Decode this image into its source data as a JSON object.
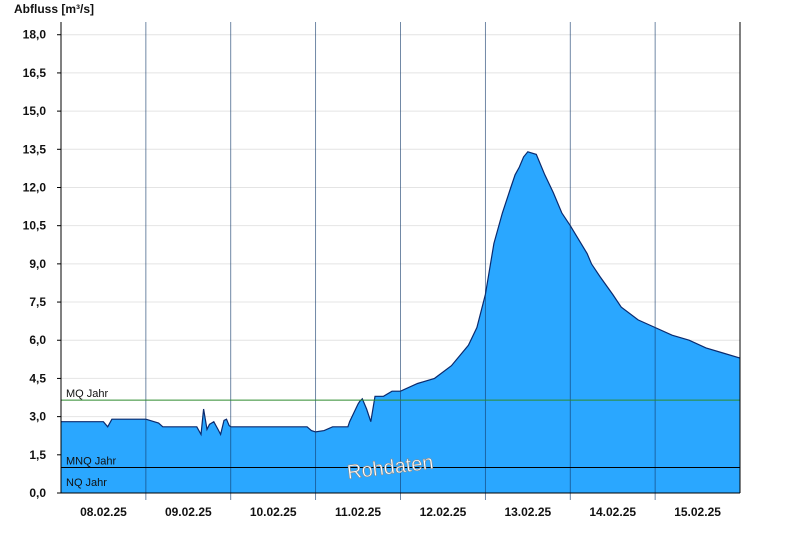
{
  "chart_data": {
    "type": "area",
    "title": "",
    "ylabel": "Abfluss [m³/s]",
    "xlabel": "",
    "ylim": [
      0,
      18.5
    ],
    "yticks": [
      "0,0",
      "1,5",
      "3,0",
      "4,5",
      "6,0",
      "7,5",
      "9,0",
      "10,5",
      "12,0",
      "13,5",
      "15,0",
      "16,5",
      "18,0"
    ],
    "ytick_values": [
      0,
      1.5,
      3.0,
      4.5,
      6.0,
      7.5,
      9.0,
      10.5,
      12.0,
      13.5,
      15.0,
      16.5,
      18.0
    ],
    "xlim": [
      0,
      8
    ],
    "xticks": [
      "08.02.25",
      "09.02.25",
      "10.02.25",
      "11.02.25",
      "12.02.25",
      "13.02.25",
      "14.02.25",
      "15.02.25"
    ],
    "grid": true,
    "colors": {
      "fill": "#2aa7ff",
      "outline": "#0a2a6e",
      "mq_line": "#2e8b2e",
      "nq_line": "#000000"
    },
    "reference_lines": [
      {
        "label": "MQ Jahr",
        "value": 3.65
      },
      {
        "label": "MNQ Jahr",
        "value": 1.0
      },
      {
        "label": "NQ Jahr",
        "value": 0.15
      }
    ],
    "watermark": "Rohdaten",
    "series": [
      {
        "x": [
          0.0,
          0.5,
          0.55,
          0.6,
          0.65,
          1.0,
          1.15,
          1.2,
          1.25,
          1.6,
          1.65,
          1.68,
          1.7,
          1.72,
          1.75,
          1.8,
          1.85,
          1.88,
          1.92,
          1.95,
          1.98,
          2.0,
          2.05,
          2.5,
          2.9,
          2.95,
          3.0,
          3.1,
          3.2,
          3.3,
          3.38,
          3.4,
          3.5,
          3.52,
          3.55,
          3.6,
          3.65,
          3.7,
          3.8,
          3.9,
          4.0,
          4.2,
          4.4,
          4.6,
          4.8,
          4.9,
          5.0,
          5.1,
          5.2,
          5.3,
          5.35,
          5.4,
          5.45,
          5.5,
          5.6,
          5.7,
          5.8,
          5.9,
          6.0,
          6.2,
          6.25,
          6.35,
          6.5,
          6.6,
          6.8,
          7.0,
          7.2,
          7.4,
          7.6,
          7.8,
          8.0
        ],
        "y": [
          2.8,
          2.8,
          2.6,
          2.9,
          2.9,
          2.9,
          2.75,
          2.6,
          2.6,
          2.6,
          2.3,
          3.3,
          2.9,
          2.5,
          2.7,
          2.8,
          2.5,
          2.3,
          2.85,
          2.9,
          2.65,
          2.6,
          2.6,
          2.6,
          2.6,
          2.45,
          2.4,
          2.45,
          2.6,
          2.6,
          2.6,
          2.8,
          3.5,
          3.6,
          3.7,
          3.3,
          2.8,
          3.8,
          3.8,
          4.0,
          4.0,
          4.3,
          4.5,
          5.0,
          5.8,
          6.5,
          7.8,
          9.8,
          11.0,
          12.0,
          12.5,
          12.8,
          13.2,
          13.4,
          13.3,
          12.5,
          11.8,
          11.0,
          10.5,
          9.4,
          9.0,
          8.5,
          7.8,
          7.3,
          6.8,
          6.5,
          6.2,
          6.0,
          5.7,
          5.5,
          5.3
        ]
      }
    ]
  }
}
